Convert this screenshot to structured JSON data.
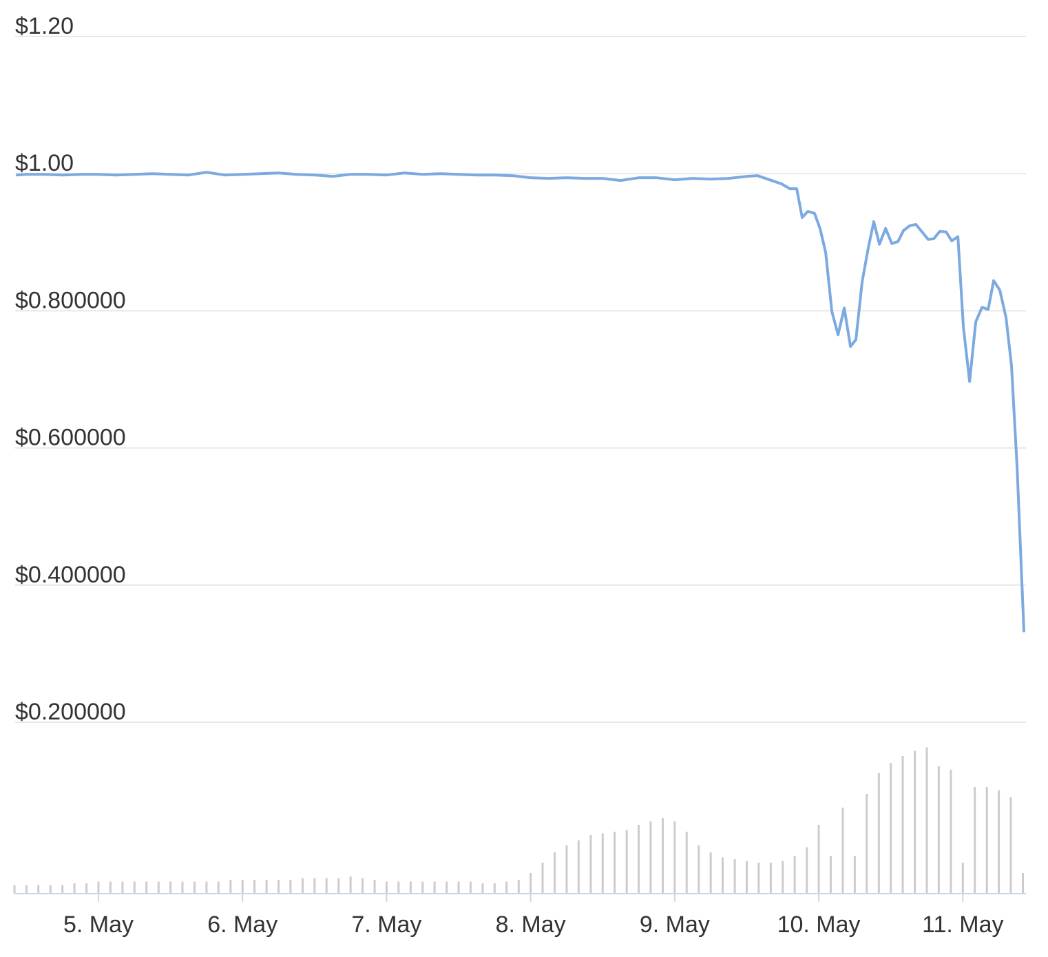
{
  "chart_data": {
    "type": "line",
    "xlim": [
      4.436,
      11.424
    ],
    "xticks": [
      {
        "value": 5,
        "label": "5. May"
      },
      {
        "value": 6,
        "label": "6. May"
      },
      {
        "value": 7,
        "label": "7. May"
      },
      {
        "value": 8,
        "label": "8. May"
      },
      {
        "value": 9,
        "label": "9. May"
      },
      {
        "value": 10,
        "label": "10. May"
      },
      {
        "value": 11,
        "label": "11. May"
      }
    ],
    "ylim": [
      -0.05,
      1.2
    ],
    "yticks": [
      {
        "value": 0.2,
        "label": "$0.200000"
      },
      {
        "value": 0.4,
        "label": "$0.400000"
      },
      {
        "value": 0.6,
        "label": "$0.600000"
      },
      {
        "value": 0.8,
        "label": "$0.800000"
      },
      {
        "value": 1.0,
        "label": "$1.00"
      },
      {
        "value": 1.2,
        "label": "$1.20"
      }
    ],
    "y2lim": [
      0,
      100
    ],
    "grid": true,
    "series": [
      {
        "color": "#7caae0",
        "x": [
          4.436,
          4.5,
          4.625,
          4.75,
          4.875,
          5.0,
          5.125,
          5.25,
          5.375,
          5.5,
          5.625,
          5.75,
          5.875,
          6.0,
          6.125,
          6.25,
          6.375,
          6.5,
          6.625,
          6.75,
          6.875,
          7.0,
          7.125,
          7.25,
          7.375,
          7.5,
          7.625,
          7.75,
          7.875,
          8.0,
          8.125,
          8.25,
          8.375,
          8.5,
          8.625,
          8.75,
          8.875,
          9.0,
          9.125,
          9.25,
          9.375,
          9.5,
          9.575,
          9.646,
          9.742,
          9.799,
          9.847,
          9.885,
          9.924,
          9.971,
          10.01,
          10.048,
          10.091,
          10.134,
          10.177,
          10.22,
          10.258,
          10.301,
          10.344,
          10.382,
          10.421,
          10.464,
          10.507,
          10.55,
          10.588,
          10.631,
          10.674,
          10.717,
          10.76,
          10.798,
          10.841,
          10.884,
          10.923,
          10.966,
          11.004,
          11.047,
          11.09,
          11.133,
          11.176,
          11.214,
          11.257,
          11.3,
          11.338,
          11.377,
          11.424
        ],
        "values": [
          0.998,
          0.999,
          0.999,
          0.998,
          0.999,
          0.999,
          0.998,
          0.999,
          1.0,
          0.999,
          0.998,
          1.002,
          0.998,
          0.999,
          1.0,
          1.001,
          0.999,
          0.998,
          0.996,
          0.999,
          0.999,
          0.998,
          1.001,
          0.999,
          1.0,
          0.999,
          0.998,
          0.998,
          0.997,
          0.994,
          0.993,
          0.994,
          0.993,
          0.993,
          0.99,
          0.994,
          0.994,
          0.991,
          0.993,
          0.992,
          0.993,
          0.996,
          0.997,
          0.992,
          0.985,
          0.978,
          0.978,
          0.936,
          0.945,
          0.942,
          0.919,
          0.885,
          0.799,
          0.765,
          0.804,
          0.748,
          0.758,
          0.842,
          0.892,
          0.93,
          0.897,
          0.92,
          0.898,
          0.901,
          0.917,
          0.924,
          0.926,
          0.915,
          0.904,
          0.905,
          0.916,
          0.915,
          0.902,
          0.908,
          0.776,
          0.697,
          0.784,
          0.805,
          0.802,
          0.844,
          0.83,
          0.79,
          0.72,
          0.571,
          0.333
        ]
      },
      {
        "color": "#cccccc",
        "axis": "y2",
        "x": [
          4.417,
          4.5,
          4.583,
          4.667,
          4.75,
          4.833,
          4.917,
          5.0,
          5.083,
          5.167,
          5.25,
          5.333,
          5.417,
          5.5,
          5.583,
          5.667,
          5.75,
          5.833,
          5.917,
          6.0,
          6.083,
          6.167,
          6.25,
          6.333,
          6.417,
          6.5,
          6.583,
          6.667,
          6.75,
          6.833,
          6.917,
          7.0,
          7.083,
          7.167,
          7.25,
          7.333,
          7.417,
          7.5,
          7.583,
          7.667,
          7.75,
          7.833,
          7.917,
          8.0,
          8.083,
          8.167,
          8.25,
          8.333,
          8.417,
          8.5,
          8.583,
          8.667,
          8.75,
          8.833,
          8.917,
          9.0,
          9.083,
          9.167,
          9.25,
          9.333,
          9.417,
          9.5,
          9.583,
          9.667,
          9.75,
          9.833,
          9.917,
          10.0,
          10.083,
          10.167,
          10.25,
          10.333,
          10.417,
          10.5,
          10.583,
          10.667,
          10.75,
          10.833,
          10.917,
          11.0,
          11.083,
          11.167,
          11.25,
          11.333,
          11.417
        ],
        "values": [
          5,
          5,
          5,
          5,
          5,
          6,
          6,
          7,
          7,
          7,
          7,
          7,
          7,
          7,
          7,
          7,
          7,
          7,
          8,
          8,
          8,
          8,
          8,
          8,
          9,
          9,
          9,
          9,
          10,
          9,
          8,
          7,
          7,
          7,
          7,
          7,
          7,
          7,
          7,
          6,
          6,
          7,
          8,
          12,
          18,
          24,
          28,
          31,
          34,
          35,
          36,
          37,
          40,
          42,
          44,
          42,
          36,
          28,
          24,
          21,
          20,
          19,
          18,
          18,
          19,
          22,
          27,
          40,
          22,
          50,
          22,
          58,
          70,
          76,
          80,
          83,
          85,
          74,
          72,
          18,
          62,
          62,
          60,
          56,
          12
        ]
      }
    ]
  }
}
